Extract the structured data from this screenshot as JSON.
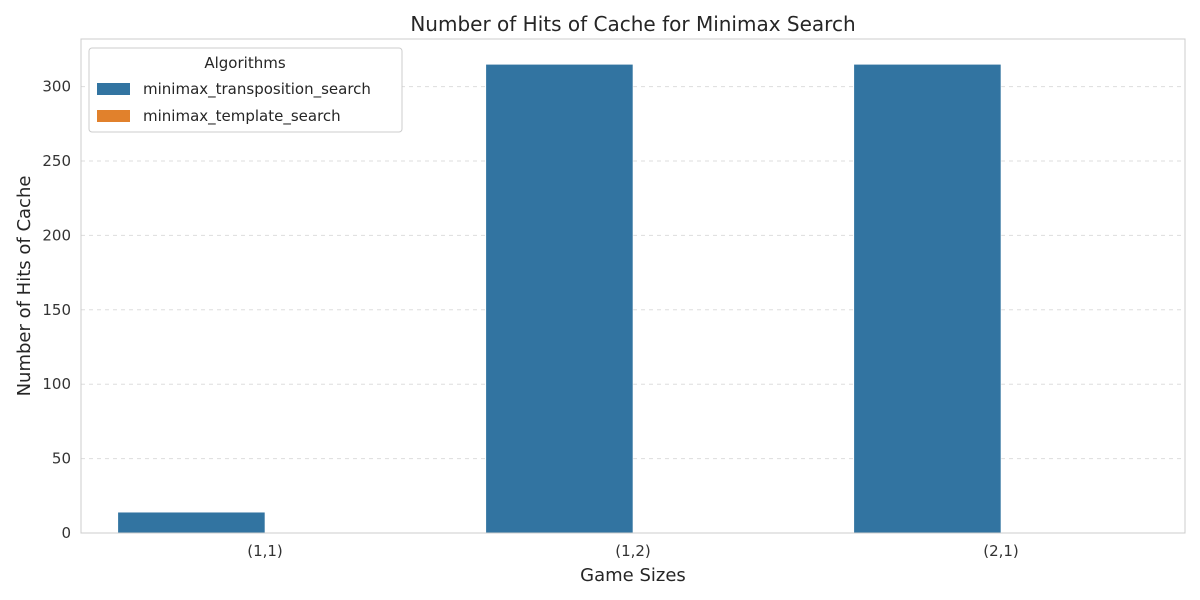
{
  "chart_data": {
    "type": "bar",
    "title": "Number of Hits of Cache for Minimax Search",
    "xlabel": "Game Sizes",
    "ylabel": "Number of Hits of Cache",
    "categories": [
      "(1,1)",
      "(1,2)",
      "(2,1)"
    ],
    "series": [
      {
        "name": "minimax_transposition_search",
        "color": "#3274a1",
        "values": [
          14,
          315,
          315
        ]
      },
      {
        "name": "minimax_template_search",
        "color": "#e1812c",
        "values": [
          0,
          0,
          0
        ]
      }
    ],
    "ylim": [
      0,
      332
    ],
    "yticks": [
      0,
      50,
      100,
      150,
      200,
      250,
      300
    ],
    "grid": true,
    "legend": {
      "title": "Algorithms",
      "placement": "top-left"
    }
  }
}
